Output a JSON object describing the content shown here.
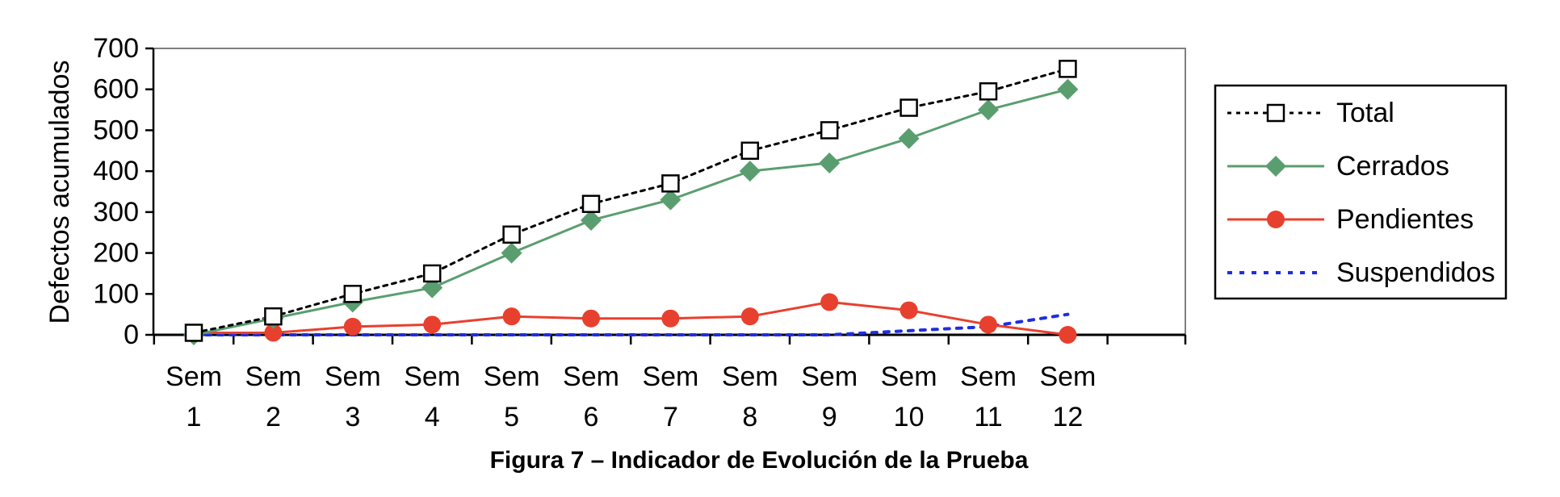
{
  "chart_data": {
    "type": "line",
    "categories": [
      [
        "Sem",
        "1"
      ],
      [
        "Sem",
        "2"
      ],
      [
        "Sem",
        "3"
      ],
      [
        "Sem",
        "4"
      ],
      [
        "Sem",
        "5"
      ],
      [
        "Sem",
        "6"
      ],
      [
        "Sem",
        "7"
      ],
      [
        "Sem",
        "8"
      ],
      [
        "Sem",
        "9"
      ],
      [
        "Sem",
        "10"
      ],
      [
        "Sem",
        "11"
      ],
      [
        "Sem",
        "12"
      ]
    ],
    "ylabel": "Defectos acumulados",
    "xlabel": "",
    "ylim": [
      0,
      700
    ],
    "yticks": [
      "0",
      "100",
      "200",
      "300",
      "400",
      "500",
      "600",
      "700"
    ],
    "ytick_values": [
      0,
      100,
      200,
      300,
      400,
      500,
      600,
      700
    ],
    "grid": false,
    "legend": "right",
    "caption": "Figura 7 – Indicador de Evolución de la Prueba",
    "series": [
      {
        "name": "Total",
        "values": [
          5,
          45,
          100,
          150,
          245,
          320,
          370,
          450,
          500,
          555,
          595,
          650
        ],
        "color": "#000000",
        "line": "dotted",
        "marker": "square"
      },
      {
        "name": "Cerrados",
        "values": [
          0,
          40,
          80,
          115,
          200,
          280,
          330,
          400,
          420,
          480,
          550,
          600
        ],
        "color": "#5a9e6f",
        "line": "solid",
        "marker": "diamond"
      },
      {
        "name": "Pendientes",
        "values": [
          5,
          5,
          20,
          25,
          45,
          40,
          40,
          45,
          80,
          60,
          25,
          0
        ],
        "color": "#e8402e",
        "line": "solid",
        "marker": "circle"
      },
      {
        "name": "Suspendidos",
        "values": [
          0,
          0,
          0,
          0,
          0,
          0,
          0,
          0,
          0,
          10,
          20,
          50
        ],
        "color": "#1f2de0",
        "line": "dotted",
        "marker": "none"
      }
    ]
  }
}
